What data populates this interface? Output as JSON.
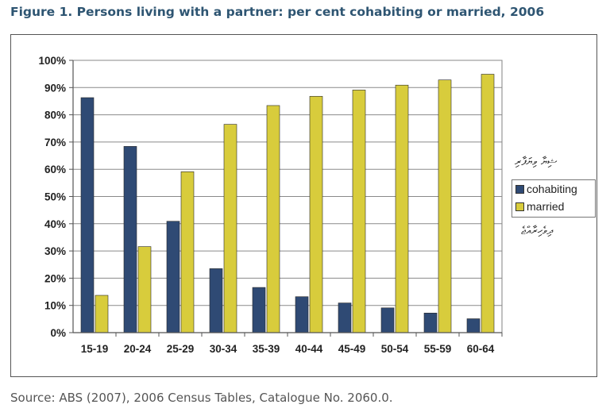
{
  "title": "Figure 1. Persons living with a partner: per cent cohabiting or married, 2006",
  "source": "Source: ABS (2007), 2006 Census Tables, Catalogue No. 2060.0.",
  "legend": {
    "annotation_top": "ޝިޔާ ވިޔަފާރި",
    "annotation_bottom": "ދިވެހިރާއްޖެ",
    "items": [
      "cohabiting",
      "married"
    ]
  },
  "chart_data": {
    "type": "bar",
    "title": "Figure 1. Persons living with a partner: per cent cohabiting or married, 2006",
    "xlabel": "",
    "ylabel": "",
    "categories": [
      "15-19",
      "20-24",
      "25-29",
      "30-34",
      "35-39",
      "40-44",
      "45-49",
      "50-54",
      "55-59",
      "60-64"
    ],
    "series": [
      {
        "name": "cohabiting",
        "color": "#2f4a74",
        "values": [
          86.3,
          68.4,
          40.9,
          23.5,
          16.6,
          13.2,
          10.9,
          9.1,
          7.2,
          5.1
        ]
      },
      {
        "name": "married",
        "color": "#d8cc3c",
        "values": [
          13.7,
          31.6,
          59.1,
          76.5,
          83.4,
          86.8,
          89.1,
          90.9,
          92.8,
          94.9
        ]
      }
    ],
    "ylim": [
      0,
      100
    ],
    "yticks": [
      "0%",
      "10%",
      "20%",
      "30%",
      "40%",
      "50%",
      "60%",
      "70%",
      "80%",
      "90%",
      "100%"
    ],
    "grid": true,
    "legend_position": "right"
  }
}
